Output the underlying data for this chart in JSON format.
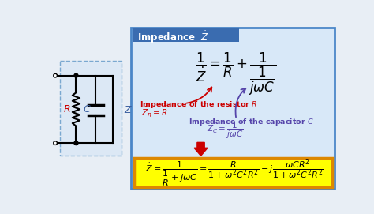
{
  "bg_color": "#e8eef5",
  "right_panel_bg": "#d8e8f8",
  "right_panel_border": "#4a86c8",
  "title_bg": "#3a6cb0",
  "title_color": "white",
  "circuit_bg": "#dce8f5",
  "circuit_border": "#7aa8d0",
  "red_color": "#cc0000",
  "blue_color": "#3a5fa0",
  "purple_color": "#5544aa",
  "yellow_bg": "#ffff00",
  "yellow_border": "#dd8800",
  "arrow_red": "#cc0000",
  "black": "#000000"
}
